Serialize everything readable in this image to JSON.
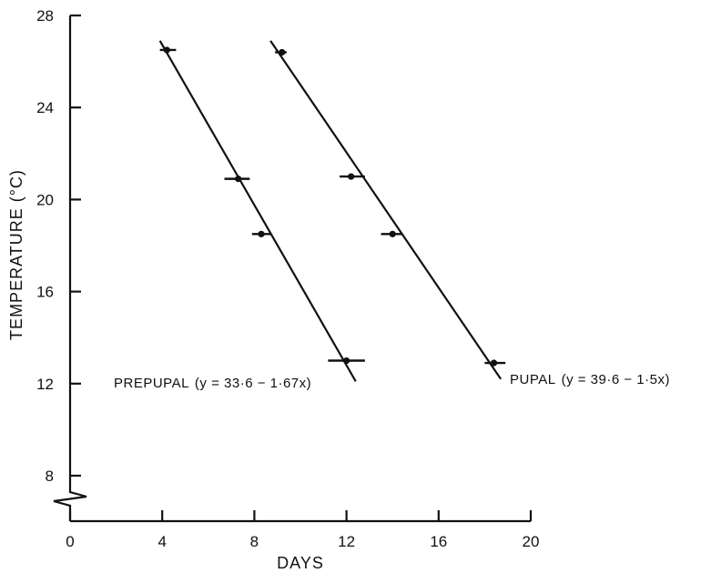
{
  "chart_data": {
    "type": "scatter",
    "xlabel": "DAYS",
    "ylabel": "TEMPERATURE (°C)",
    "xlim": [
      0,
      20
    ],
    "ylim": [
      7,
      28
    ],
    "x_ticks": [
      "0",
      "4",
      "8",
      "12",
      "16",
      "20"
    ],
    "y_ticks": [
      "8",
      "12",
      "16",
      "20",
      "24",
      "28"
    ],
    "y_axis_break": true,
    "grid": false,
    "series": [
      {
        "name": "PREPUPAL",
        "equation": "(y = 33·6 − 1·67x)",
        "points": [
          {
            "x": 4.2,
            "y": 26.5,
            "xerr": [
              3.9,
              4.6
            ]
          },
          {
            "x": 7.3,
            "y": 20.9,
            "xerr": [
              6.7,
              7.8
            ]
          },
          {
            "x": 8.3,
            "y": 18.5,
            "xerr": [
              7.9,
              8.7
            ]
          },
          {
            "x": 12.0,
            "y": 13.0,
            "xerr": [
              11.2,
              12.8
            ]
          }
        ],
        "fit_line": {
          "x": [
            3.9,
            12.4
          ],
          "y": [
            26.9,
            12.1
          ]
        }
      },
      {
        "name": "PUPAL",
        "equation": "(y = 39·6 − 1·5x)",
        "points": [
          {
            "x": 9.2,
            "y": 26.4,
            "xerr": [
              8.9,
              9.4
            ]
          },
          {
            "x": 12.2,
            "y": 21.0,
            "xerr": [
              11.7,
              12.8
            ]
          },
          {
            "x": 14.0,
            "y": 18.5,
            "xerr": [
              13.5,
              14.4
            ]
          },
          {
            "x": 18.4,
            "y": 12.9,
            "xerr": [
              18.0,
              18.9
            ]
          }
        ],
        "fit_line": {
          "x": [
            8.7,
            18.7
          ],
          "y": [
            26.9,
            12.2
          ]
        }
      }
    ]
  }
}
